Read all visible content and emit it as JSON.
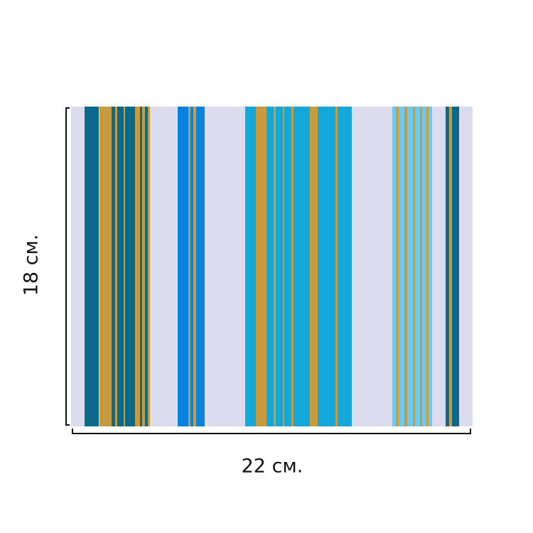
{
  "height_label": "18 см.",
  "width_label": "22 см."
}
